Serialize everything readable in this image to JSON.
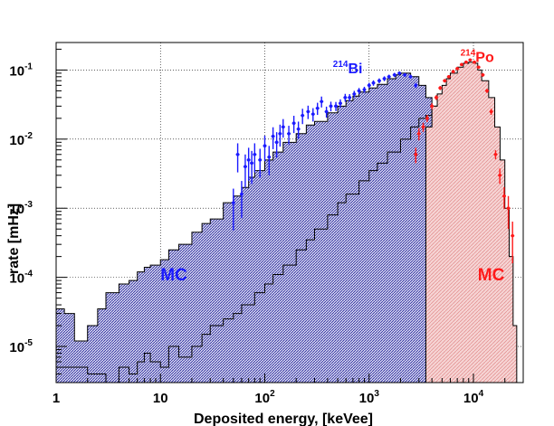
{
  "chart_data": {
    "type": "area",
    "title": "",
    "xlabel": "Deposited energy, [keVee]",
    "ylabel": "rate [mHz]",
    "xscale": "log",
    "yscale": "log",
    "xlim": [
      1,
      30000
    ],
    "ylim": [
      3e-06,
      0.25
    ],
    "grid": true,
    "x_ticks": [
      {
        "value": 1,
        "label": "1"
      },
      {
        "value": 10,
        "label": "10"
      },
      {
        "value": 100,
        "label": "10",
        "exp": "2"
      },
      {
        "value": 1000,
        "label": "10",
        "exp": "3"
      },
      {
        "value": 10000,
        "label": "10",
        "exp": "4"
      }
    ],
    "y_ticks": [
      {
        "value": 1e-05,
        "label": "10",
        "exp": "-5"
      },
      {
        "value": 0.0001,
        "label": "10",
        "exp": "-4"
      },
      {
        "value": 0.001,
        "label": "10",
        "exp": "-3"
      },
      {
        "value": 0.01,
        "label": "10",
        "exp": "-2"
      },
      {
        "value": 0.1,
        "label": "10",
        "exp": "-1"
      }
    ],
    "annotations": [
      {
        "sup": "214",
        "text": "Bi",
        "color": "#1a1aff",
        "x": 450,
        "y": 0.09
      },
      {
        "sup": "214",
        "text": "Po",
        "color": "#ff1a1a",
        "x": 7500,
        "y": 0.13
      },
      {
        "sup": "",
        "text": "MC",
        "color": "#1a1aff",
        "x": 10,
        "y": 9e-05
      },
      {
        "sup": "",
        "text": "MC",
        "color": "#ff1a1a",
        "x": 11000,
        "y": 9e-05
      }
    ],
    "series": [
      {
        "key": "bi_mc_upper",
        "color": "#000000",
        "fill": "#20209a",
        "style": "hatched-histogram",
        "x": [
          1,
          1.2,
          1.5,
          2,
          2.5,
          3,
          4,
          5,
          6,
          7,
          8,
          10,
          12,
          15,
          20,
          25,
          30,
          40,
          50,
          60,
          70,
          80,
          100,
          120,
          150,
          200,
          250,
          300,
          400,
          500,
          600,
          700,
          800,
          1000,
          1200,
          1500,
          1800,
          2000,
          2500,
          3000,
          3500,
          4000,
          4500,
          5000
        ],
        "values": [
          3.5e-05,
          3e-05,
          1.2e-05,
          2e-05,
          3.5e-05,
          6e-05,
          8e-05,
          9e-05,
          0.00012,
          0.00014,
          0.00015,
          0.00018,
          0.00025,
          0.0003,
          0.00045,
          0.0006,
          0.0007,
          0.0012,
          0.0015,
          0.002,
          0.0028,
          0.0035,
          0.005,
          0.0065,
          0.009,
          0.012,
          0.016,
          0.018,
          0.024,
          0.03,
          0.036,
          0.042,
          0.048,
          0.055,
          0.062,
          0.075,
          0.085,
          0.09,
          0.08,
          0.06,
          0.04,
          0.025,
          0.015,
          0.008
        ]
      },
      {
        "key": "bi_mc_lower",
        "color": "#000000",
        "style": "histogram-line",
        "x": [
          1,
          2,
          3,
          4,
          5,
          6,
          7,
          8,
          10,
          12,
          15,
          20,
          25,
          30,
          40,
          50,
          60,
          80,
          100,
          120,
          150,
          200,
          250,
          300,
          400,
          500,
          600,
          800,
          1000,
          1200,
          1500,
          2000,
          2500,
          3000,
          3500,
          4000,
          4500,
          5000
        ],
        "values": [
          5e-06,
          4e-06,
          3e-06,
          5e-06,
          4e-06,
          6e-06,
          8e-06,
          6e-06,
          5e-06,
          1e-05,
          7e-06,
          1e-05,
          1.5e-05,
          2e-05,
          2.5e-05,
          3e-05,
          4e-05,
          6e-05,
          8e-05,
          0.00011,
          0.00015,
          0.00025,
          0.00035,
          0.0005,
          0.0008,
          0.0012,
          0.0016,
          0.0025,
          0.0035,
          0.0045,
          0.0065,
          0.01,
          0.015,
          0.02,
          0.022,
          0.03,
          0.02,
          0.012
        ]
      },
      {
        "key": "po_mc",
        "color": "#000000",
        "fill": "#f4c8c8",
        "style": "histogram-fill",
        "x": [
          3000,
          3500,
          4000,
          4500,
          5000,
          5500,
          6000,
          7000,
          8000,
          9000,
          10000,
          11000,
          12000,
          14000,
          16000,
          18000,
          20000,
          22000,
          24000,
          26000
        ],
        "values": [
          3e-06,
          0.015,
          0.03,
          0.045,
          0.06,
          0.075,
          0.09,
          0.11,
          0.125,
          0.13,
          0.125,
          0.1,
          0.07,
          0.04,
          0.015,
          0.005,
          0.001,
          0.0002,
          2e-05,
          3e-06
        ]
      },
      {
        "key": "bi_data",
        "color": "#1a1aff",
        "style": "points-errorbars",
        "x": [
          50,
          55,
          60,
          65,
          70,
          75,
          80,
          90,
          100,
          110,
          120,
          130,
          140,
          150,
          170,
          190,
          210,
          230,
          260,
          290,
          320,
          350,
          390,
          430,
          480,
          530,
          590,
          650,
          720,
          800,
          900,
          1000,
          1100,
          1250,
          1400,
          1550,
          1750,
          1950,
          2200,
          2500,
          2800
        ],
        "values": [
          0.0012,
          0.006,
          0.0016,
          0.004,
          0.005,
          0.0045,
          0.006,
          0.005,
          0.008,
          0.0055,
          0.011,
          0.009,
          0.012,
          0.015,
          0.012,
          0.017,
          0.014,
          0.022,
          0.025,
          0.023,
          0.028,
          0.035,
          0.025,
          0.03,
          0.03,
          0.033,
          0.04,
          0.04,
          0.045,
          0.05,
          0.052,
          0.06,
          0.065,
          0.07,
          0.075,
          0.08,
          0.085,
          0.09,
          0.085,
          0.08,
          0.06
        ],
        "errors": [
          0.6,
          0.45,
          0.55,
          0.5,
          0.5,
          0.5,
          0.45,
          0.45,
          0.4,
          0.45,
          0.35,
          0.4,
          0.35,
          0.3,
          0.3,
          0.28,
          0.28,
          0.25,
          0.22,
          0.22,
          0.2,
          0.18,
          0.18,
          0.16,
          0.15,
          0.14,
          0.13,
          0.12,
          0.11,
          0.1,
          0.1,
          0.09,
          0.09,
          0.08,
          0.08,
          0.07,
          0.07,
          0.06,
          0.06,
          0.07,
          0.08
        ]
      },
      {
        "key": "po_data",
        "color": "#ff1a1a",
        "style": "points-errorbars",
        "x": [
          2800,
          3000,
          3300,
          3600,
          4000,
          4400,
          4800,
          5300,
          5800,
          6400,
          7000,
          7700,
          8500,
          9300,
          10200,
          11200,
          12300,
          13500,
          14800,
          16300,
          17900,
          19700,
          21600,
          23700
        ],
        "values": [
          0.006,
          0.012,
          0.015,
          0.02,
          0.03,
          0.04,
          0.055,
          0.07,
          0.08,
          0.095,
          0.105,
          0.12,
          0.13,
          0.14,
          0.13,
          0.11,
          0.085,
          0.05,
          0.025,
          0.006,
          0.003,
          0.0015,
          0.001,
          0.0004
        ],
        "errors": [
          0.25,
          0.2,
          0.15,
          0.12,
          0.1,
          0.08,
          0.07,
          0.06,
          0.05,
          0.05,
          0.04,
          0.04,
          0.04,
          0.04,
          0.04,
          0.05,
          0.06,
          0.07,
          0.1,
          0.15,
          0.25,
          0.35,
          0.5,
          0.6
        ]
      }
    ]
  }
}
